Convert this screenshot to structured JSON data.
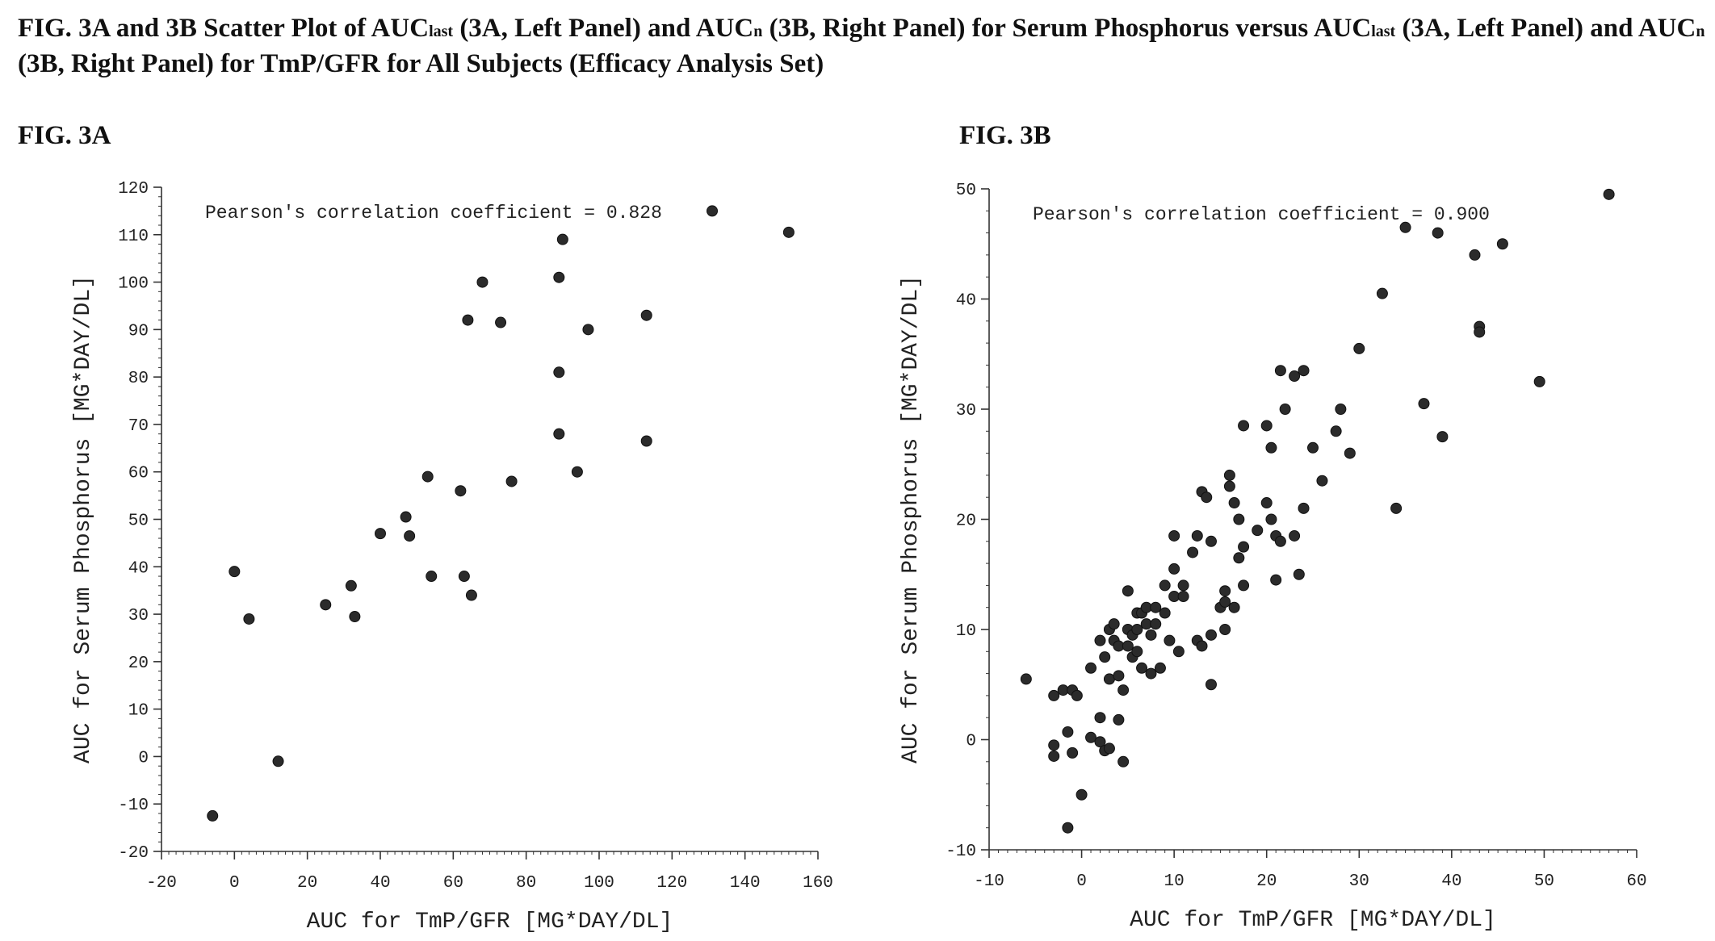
{
  "title": "FIG. 3A and 3B Scatter Plot of AUClast (3A, Left Panel) and AUCn (3B, Right Panel) for Serum Phosphorus versus AUClast (3A, Left Panel) and AUCn (3B, Right Panel) for TmP/GFR for All Subjects (Efficacy Analysis Set)",
  "title_parts": {
    "p1": "FIG. 3A and 3B Scatter Plot of AUC",
    "sub1": "last",
    "p2": " (3A, Left Panel) and AUC",
    "sub2": "n",
    "p3": " (3B, Right Panel) for Serum Phosphorus versus AUC",
    "sub3": "last",
    "p4": " (3A, Left Panel) and AUC",
    "sub4": "n",
    "p5": " (3B, Right Panel) for TmP/GFR for All Subjects (Efficacy Analysis Set)"
  },
  "panels": {
    "a_label": "FIG. 3A",
    "b_label": "FIG. 3B"
  },
  "colors": {
    "marker": "#2b2b2b",
    "axis": "#333333",
    "background": "#ffffff"
  },
  "chart_data": [
    {
      "type": "scatter",
      "title": "",
      "annotation": "Pearson's correlation coefficient = 0.828",
      "xlabel": "AUC for TmP/GFR [MG*DAY/DL]",
      "ylabel": "AUC for Serum Phosphorus [MG*DAY/DL]",
      "xlim": [
        -20,
        160
      ],
      "ylim": [
        -20,
        120
      ],
      "xticks": [
        -20,
        0,
        20,
        40,
        60,
        80,
        100,
        120,
        140,
        160
      ],
      "yticks": [
        -20,
        -10,
        0,
        10,
        20,
        30,
        40,
        50,
        60,
        70,
        80,
        90,
        100,
        110,
        120
      ],
      "grid": false,
      "points": [
        [
          -6,
          -12.5
        ],
        [
          0,
          39
        ],
        [
          4,
          29
        ],
        [
          12,
          -1
        ],
        [
          25,
          32
        ],
        [
          32,
          36
        ],
        [
          33,
          29.5
        ],
        [
          40,
          47
        ],
        [
          47,
          50.5
        ],
        [
          48,
          46.5
        ],
        [
          53,
          59
        ],
        [
          54,
          38
        ],
        [
          62,
          56
        ],
        [
          63,
          38
        ],
        [
          64,
          92
        ],
        [
          65,
          34
        ],
        [
          68,
          100
        ],
        [
          73,
          91.5
        ],
        [
          76,
          58
        ],
        [
          89,
          81
        ],
        [
          89,
          101
        ],
        [
          89,
          68
        ],
        [
          90,
          109
        ],
        [
          94,
          60
        ],
        [
          97,
          90
        ],
        [
          113,
          93
        ],
        [
          113,
          66.5
        ],
        [
          131,
          115
        ],
        [
          152,
          110.5
        ]
      ]
    },
    {
      "type": "scatter",
      "title": "",
      "annotation": "Pearson's correlation coefficient = 0.900",
      "xlabel": "AUC for TmP/GFR [MG*DAY/DL]",
      "ylabel": "AUC for Serum Phosphorus [MG*DAY/DL]",
      "xlim": [
        -10,
        60
      ],
      "ylim": [
        -10,
        50
      ],
      "xticks": [
        -10,
        0,
        10,
        20,
        30,
        40,
        50,
        60
      ],
      "yticks": [
        -10,
        0,
        10,
        20,
        30,
        40,
        50
      ],
      "grid": false,
      "points": [
        [
          -6,
          5.5
        ],
        [
          -3,
          -0.5
        ],
        [
          -3,
          -1.5
        ],
        [
          -3,
          4
        ],
        [
          -2,
          4.5
        ],
        [
          -1.5,
          -8
        ],
        [
          -1.5,
          0.7
        ],
        [
          -1,
          -1.2
        ],
        [
          -1,
          4.5
        ],
        [
          -0.5,
          4
        ],
        [
          0,
          -5
        ],
        [
          1,
          0.2
        ],
        [
          1,
          6.5
        ],
        [
          2,
          2
        ],
        [
          2,
          -0.2
        ],
        [
          2,
          9
        ],
        [
          2.5,
          -1
        ],
        [
          2.5,
          7.5
        ],
        [
          3,
          10
        ],
        [
          3,
          -0.8
        ],
        [
          3,
          5.5
        ],
        [
          3.5,
          9
        ],
        [
          3.5,
          10.5
        ],
        [
          4,
          1.8
        ],
        [
          4,
          5.8
        ],
        [
          4,
          8.5
        ],
        [
          4.5,
          -2
        ],
        [
          4.5,
          4.5
        ],
        [
          5,
          8.5
        ],
        [
          5,
          10
        ],
        [
          5,
          13.5
        ],
        [
          5.5,
          7.5
        ],
        [
          5.5,
          9.5
        ],
        [
          6,
          8
        ],
        [
          6,
          10
        ],
        [
          6,
          11.5
        ],
        [
          6.5,
          6.5
        ],
        [
          6.5,
          11.5
        ],
        [
          7,
          10.5
        ],
        [
          7,
          12
        ],
        [
          7.5,
          6
        ],
        [
          7.5,
          9.5
        ],
        [
          8,
          10.5
        ],
        [
          8,
          12
        ],
        [
          8.5,
          6.5
        ],
        [
          9,
          11.5
        ],
        [
          9,
          14
        ],
        [
          9.5,
          9
        ],
        [
          10,
          13
        ],
        [
          10,
          15.5
        ],
        [
          10,
          18.5
        ],
        [
          10.5,
          8
        ],
        [
          11,
          14
        ],
        [
          11,
          13
        ],
        [
          12,
          17
        ],
        [
          12.5,
          18.5
        ],
        [
          12.5,
          9
        ],
        [
          13,
          22.5
        ],
        [
          13,
          8.5
        ],
        [
          13.5,
          22
        ],
        [
          14,
          18
        ],
        [
          14,
          9.5
        ],
        [
          14,
          5
        ],
        [
          15,
          12
        ],
        [
          15.5,
          12.5
        ],
        [
          15.5,
          13.5
        ],
        [
          15.5,
          10
        ],
        [
          16,
          23
        ],
        [
          16,
          24
        ],
        [
          16.5,
          21.5
        ],
        [
          16.5,
          12
        ],
        [
          17,
          20
        ],
        [
          17,
          16.5
        ],
        [
          17.5,
          28.5
        ],
        [
          17.5,
          17.5
        ],
        [
          17.5,
          14
        ],
        [
          19,
          19
        ],
        [
          20,
          21.5
        ],
        [
          20,
          28.5
        ],
        [
          20.5,
          20
        ],
        [
          20.5,
          26.5
        ],
        [
          21,
          18.5
        ],
        [
          21,
          14.5
        ],
        [
          21.5,
          33.5
        ],
        [
          21.5,
          18
        ],
        [
          22,
          30
        ],
        [
          23,
          18.5
        ],
        [
          23,
          33
        ],
        [
          23.5,
          15
        ],
        [
          24,
          33.5
        ],
        [
          24,
          21
        ],
        [
          25,
          26.5
        ],
        [
          26,
          23.5
        ],
        [
          27.5,
          28
        ],
        [
          28,
          30
        ],
        [
          29,
          26
        ],
        [
          30,
          35.5
        ],
        [
          32.5,
          40.5
        ],
        [
          34,
          21
        ],
        [
          35,
          46.5
        ],
        [
          37,
          30.5
        ],
        [
          38.5,
          46
        ],
        [
          39,
          27.5
        ],
        [
          42.5,
          44
        ],
        [
          43,
          37.5
        ],
        [
          43,
          37
        ],
        [
          45.5,
          45
        ],
        [
          49.5,
          32.5
        ],
        [
          57,
          49.5
        ]
      ]
    }
  ]
}
